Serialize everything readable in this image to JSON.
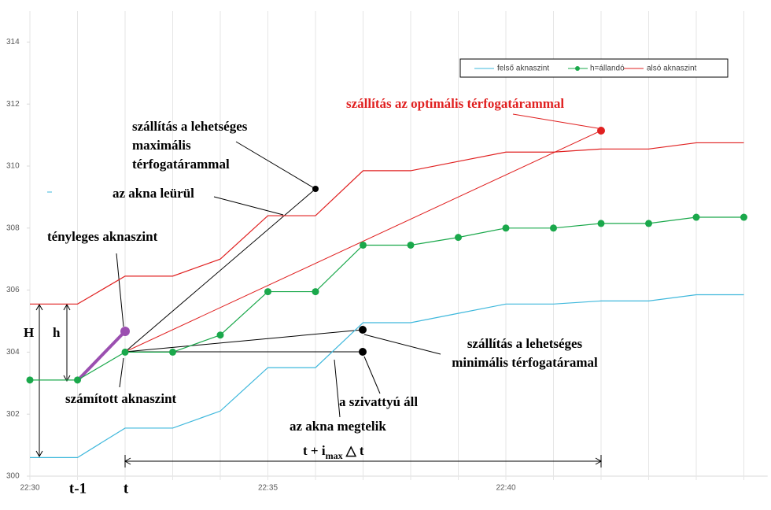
{
  "chart_data": {
    "type": "line",
    "categories": [
      "22:30",
      null,
      null,
      null,
      null,
      "22:35",
      null,
      null,
      null,
      null,
      "22:40",
      null,
      null,
      null,
      null,
      null
    ],
    "ylim": [
      300,
      315
    ],
    "yticks": [
      300,
      302,
      304,
      306,
      308,
      310,
      312,
      314
    ],
    "grid": true,
    "series": [
      {
        "name": "felső aknaszint",
        "color": "#3fb8dc",
        "marker": false,
        "values": [
          300.6,
          300.6,
          301.55,
          301.55,
          302.1,
          303.5,
          303.5,
          304.95,
          304.95,
          305.25,
          305.55,
          305.55,
          305.65,
          305.65,
          305.85,
          305.85
        ]
      },
      {
        "name": "h=állandó",
        "color": "#1aa84b",
        "marker": true,
        "values": [
          303.1,
          303.1,
          304.0,
          304.0,
          304.55,
          305.95,
          305.95,
          307.45,
          307.45,
          307.7,
          308.0,
          308.0,
          308.15,
          308.15,
          308.35,
          308.35
        ]
      },
      {
        "name": "alsó aknaszint",
        "color": "#e02020",
        "marker": false,
        "values": [
          305.55,
          305.55,
          306.45,
          306.45,
          307.0,
          308.4,
          308.4,
          309.85,
          309.85,
          310.15,
          310.45,
          310.45,
          310.55,
          310.55,
          310.75,
          310.75
        ]
      }
    ],
    "annotations": {
      "optimal": "szállítás az optimális térfogatárammal",
      "max": [
        "szállítás a lehetséges",
        "maximális",
        "térfogatárammal"
      ],
      "empties": "az akna leürül",
      "actual": "tényleges aknaszint",
      "H": "H",
      "h": "h",
      "computed": "számított aknaszint",
      "min": [
        "szállítás a lehetséges",
        "minimális térfogatáramal"
      ],
      "pump_stops": "a szivattyú áll",
      "fills": "az akna megtelik",
      "formula": {
        "main": "t + i",
        "sub": "max",
        "tail": "△ t"
      },
      "t_minus": "t-1",
      "t": "t"
    }
  }
}
